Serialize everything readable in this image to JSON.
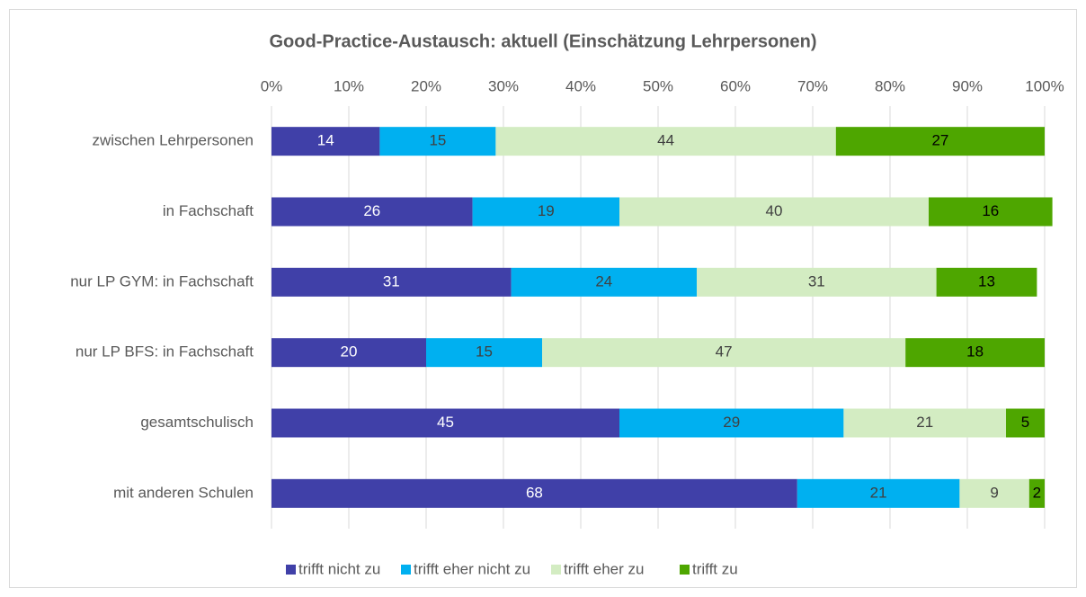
{
  "chart_data": {
    "type": "bar",
    "orientation": "horizontal",
    "stacked": true,
    "title": "Good-Practice-Austausch: aktuell (Einschätzung Lehrpersonen)",
    "categories": [
      "zwischen Lehrpersonen",
      "in Fachschaft",
      "nur LP GYM: in Fachschaft",
      "nur LP BFS: in Fachschaft",
      "gesamtschulisch",
      "mit anderen Schulen"
    ],
    "series": [
      {
        "name": "trifft nicht zu",
        "color": "#4040a8",
        "label_color": "#ffffff",
        "values": [
          14,
          26,
          31,
          20,
          45,
          68
        ]
      },
      {
        "name": "trifft eher nicht zu",
        "color": "#00b0f0",
        "label_color": "#404040",
        "values": [
          15,
          19,
          24,
          15,
          29,
          21
        ]
      },
      {
        "name": "trifft eher zu",
        "color": "#d3ecc2",
        "label_color": "#404040",
        "values": [
          44,
          40,
          31,
          47,
          21,
          9
        ]
      },
      {
        "name": "trifft zu",
        "color": "#4ea600",
        "label_color": "#000000",
        "values": [
          27,
          16,
          13,
          18,
          5,
          2
        ]
      }
    ],
    "xlim": [
      0,
      100
    ],
    "xticks": [
      {
        "value": 0,
        "label": "0%"
      },
      {
        "value": 10,
        "label": "10%"
      },
      {
        "value": 20,
        "label": "20%"
      },
      {
        "value": 30,
        "label": "30%"
      },
      {
        "value": 40,
        "label": "40%"
      },
      {
        "value": 50,
        "label": "50%"
      },
      {
        "value": 60,
        "label": "60%"
      },
      {
        "value": 70,
        "label": "70%"
      },
      {
        "value": 80,
        "label": "80%"
      },
      {
        "value": 90,
        "label": "90%"
      },
      {
        "value": 100,
        "label": "100%"
      }
    ],
    "grid": true,
    "legend": "bottom"
  }
}
